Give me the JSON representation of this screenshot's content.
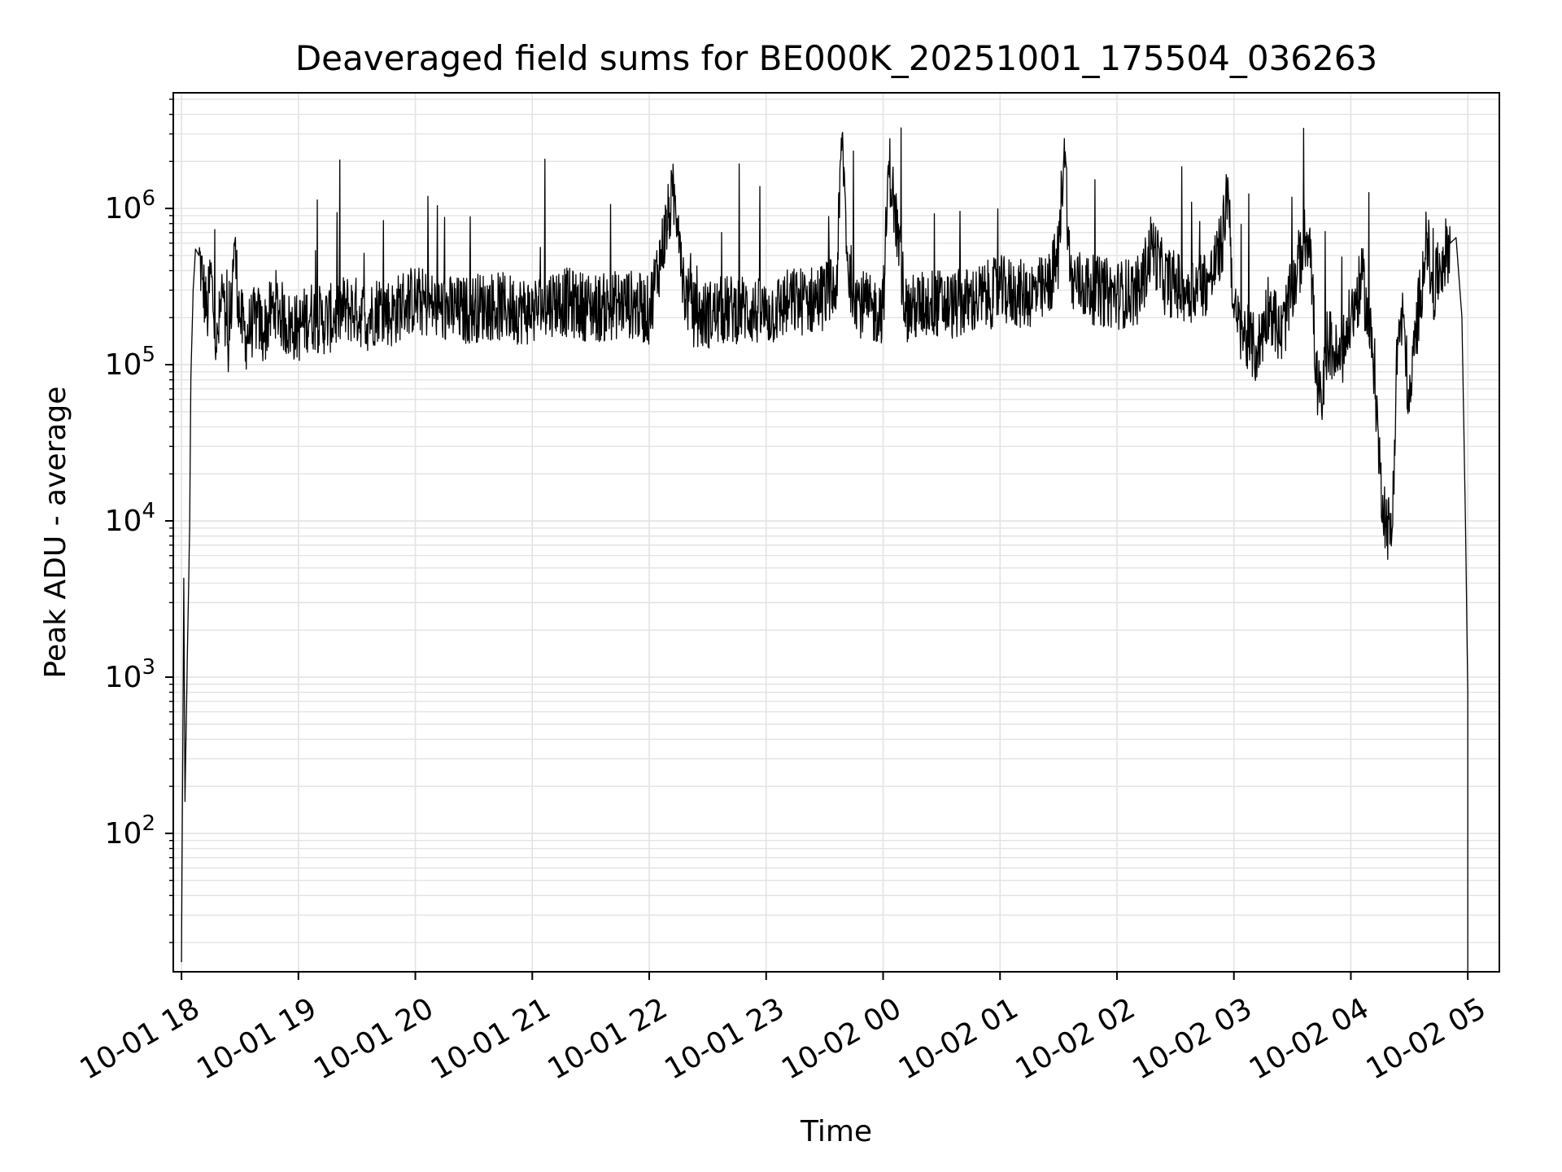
{
  "chart_data": {
    "type": "line",
    "title": "Deaveraged field sums for BE000K_20251001_175504_036263",
    "xlabel": "Time",
    "ylabel": "Peak ADU - average",
    "yscale": "log",
    "ylim": [
      13,
      5500000
    ],
    "xlim_hours": [
      17.93,
      29.27
    ],
    "grid": true,
    "line_color": "#000000",
    "grid_color": "#e3e3e3",
    "x_ticks": [
      {
        "hour": 18,
        "label": "10-01 18"
      },
      {
        "hour": 19,
        "label": "10-01 19"
      },
      {
        "hour": 20,
        "label": "10-01 20"
      },
      {
        "hour": 21,
        "label": "10-01 21"
      },
      {
        "hour": 22,
        "label": "10-01 22"
      },
      {
        "hour": 23,
        "label": "10-01 23"
      },
      {
        "hour": 24,
        "label": "10-02 00"
      },
      {
        "hour": 25,
        "label": "10-02 01"
      },
      {
        "hour": 26,
        "label": "10-02 02"
      },
      {
        "hour": 27,
        "label": "10-02 03"
      },
      {
        "hour": 28,
        "label": "10-02 04"
      },
      {
        "hour": 29,
        "label": "10-02 05"
      }
    ],
    "y_ticks": [
      {
        "exp": 2,
        "base": "10",
        "sup": "2"
      },
      {
        "exp": 3,
        "base": "10",
        "sup": "3"
      },
      {
        "exp": 4,
        "base": "10",
        "sup": "4"
      },
      {
        "exp": 5,
        "base": "10",
        "sup": "5"
      },
      {
        "exp": 6,
        "base": "10",
        "sup": "6"
      }
    ],
    "series": [
      {
        "name": "deaveraged field sum",
        "x_hours": [
          18.0,
          18.02,
          18.03,
          18.05,
          18.07,
          18.08,
          18.1,
          18.12,
          18.15,
          18.18,
          18.22,
          18.25,
          18.3,
          18.35,
          18.4,
          18.45,
          18.5,
          18.55,
          18.6,
          18.65,
          18.7,
          18.8,
          18.9,
          19.0,
          19.1,
          19.2,
          19.3,
          19.4,
          19.5,
          19.6,
          19.7,
          19.8,
          19.9,
          20.0,
          20.2,
          20.4,
          20.6,
          20.8,
          21.0,
          21.2,
          21.4,
          21.6,
          21.8,
          22.0,
          22.2,
          22.25,
          22.3,
          22.4,
          22.6,
          22.8,
          23.0,
          23.2,
          23.4,
          23.6,
          23.65,
          23.7,
          23.8,
          23.9,
          24.0,
          24.05,
          24.2,
          24.4,
          24.6,
          24.8,
          25.0,
          25.2,
          25.4,
          25.5,
          25.55,
          25.6,
          25.8,
          26.0,
          26.2,
          26.3,
          26.4,
          26.6,
          26.8,
          26.9,
          26.95,
          27.0,
          27.1,
          27.2,
          27.3,
          27.4,
          27.5,
          27.6,
          27.65,
          27.7,
          27.75,
          27.8,
          27.9,
          28.0,
          28.1,
          28.2,
          28.25,
          28.3,
          28.35,
          28.4,
          28.45,
          28.5,
          28.55,
          28.6,
          28.65,
          28.7,
          28.75,
          28.8,
          28.85,
          28.9,
          28.95,
          28.98,
          29.0
        ],
        "y_values": [
          15,
          4300,
          160,
          1300,
          9000,
          80000,
          300000,
          550000,
          500000,
          350000,
          200000,
          400000,
          120000,
          300000,
          90000,
          600000,
          200000,
          150000,
          180000,
          200000,
          160000,
          250000,
          180000,
          170000,
          210000,
          190000,
          200000,
          230000,
          220000,
          200000,
          240000,
          210000,
          250000,
          260000,
          230000,
          220000,
          240000,
          230000,
          220000,
          260000,
          240000,
          230000,
          250000,
          220000,
          1200000,
          900000,
          300000,
          200000,
          220000,
          230000,
          210000,
          250000,
          260000,
          300000,
          3000000,
          400000,
          250000,
          220000,
          230000,
          2000000,
          220000,
          250000,
          240000,
          260000,
          300000,
          280000,
          300000,
          500000,
          2800000,
          350000,
          300000,
          280000,
          300000,
          600000,
          350000,
          300000,
          350000,
          600000,
          1500000,
          200000,
          150000,
          120000,
          250000,
          150000,
          300000,
          600000,
          750000,
          90000,
          50000,
          150000,
          100000,
          200000,
          350000,
          100000,
          20000,
          10000,
          8000,
          150000,
          200000,
          50000,
          150000,
          300000,
          700000,
          250000,
          400000,
          500000,
          600000,
          650000,
          200000,
          10000,
          800
        ]
      }
    ]
  }
}
